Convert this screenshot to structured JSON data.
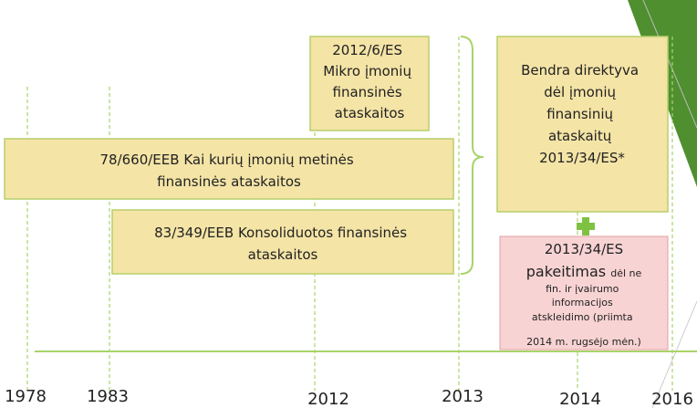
{
  "boxes": {
    "mikro": {
      "lines": [
        "2012/6/ES",
        "Mikro įmonių",
        "finansinės",
        "ataskaitos"
      ]
    },
    "eeb78": {
      "lines": [
        "78/660/EEB  Kai kurių įmonių metinės",
        "finansinės ataskaitos"
      ]
    },
    "eeb83": {
      "lines": [
        "83/349/EEB Konsoliduotos finansinės",
        "ataskaitos"
      ]
    },
    "bendra": {
      "lines": [
        "Bendra direktyva",
        "dėl įmonių",
        "finansinių",
        "ataskaitų",
        "2013/34/ES*"
      ]
    },
    "pakeitimas": {
      "code": "2013/34/ES",
      "word": "pakeitimas",
      "rest": "dėl ne",
      "lines": [
        "fin. ir įvairumo",
        "informacijos",
        "atskleidimo (priimta",
        "2014 m. rugsėjo mėn.)"
      ]
    }
  },
  "years": [
    "1978",
    "1983",
    "2012",
    "2013",
    "2014",
    "2016"
  ]
}
